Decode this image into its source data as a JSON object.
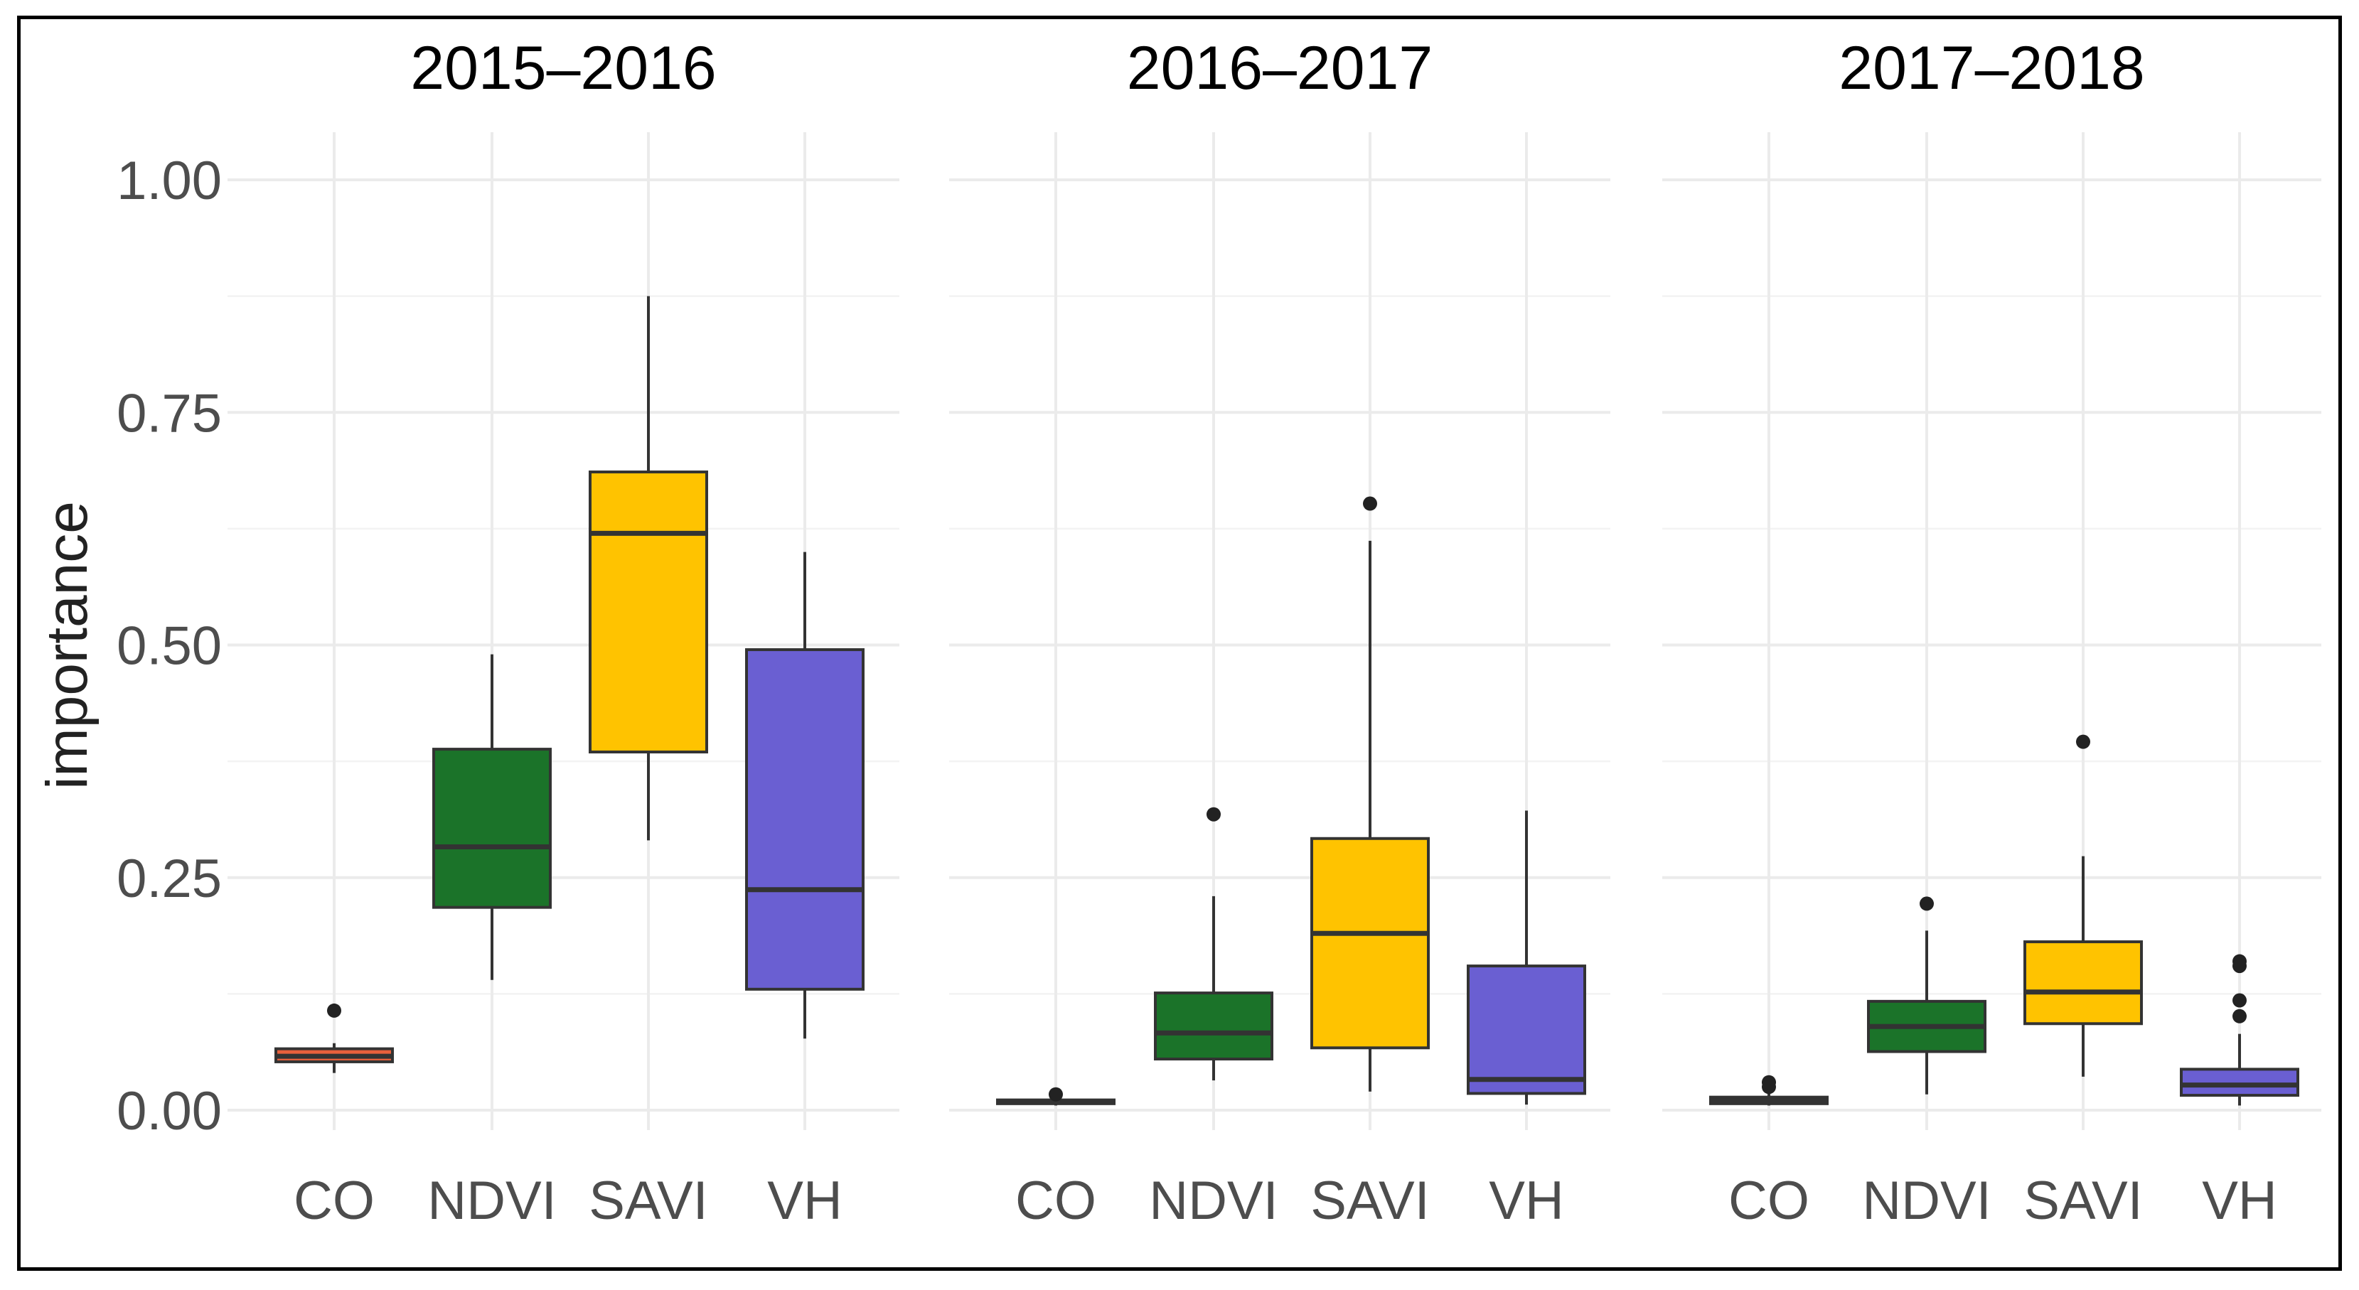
{
  "chart_data": {
    "type": "boxplot",
    "ylabel": "importance",
    "xlabel": "",
    "ylim": [
      -0.02,
      1.05
    ],
    "y_ticks": [
      {
        "value": 0.0,
        "label": "0.00"
      },
      {
        "value": 0.25,
        "label": "0.25"
      },
      {
        "value": 0.5,
        "label": "0.50"
      },
      {
        "value": 0.75,
        "label": "0.75"
      },
      {
        "value": 1.0,
        "label": "1.00"
      }
    ],
    "categories": [
      "CO",
      "NDVI",
      "SAVI",
      "VH"
    ],
    "colors": {
      "CO": "#e8603c",
      "NDVI": "#1b7329",
      "SAVI": "#ffc300",
      "VH": "#6a5fd2"
    },
    "panels": [
      {
        "title": "2015–2016",
        "boxes": [
          {
            "category": "CO",
            "min": 0.04,
            "q1": 0.052,
            "median": 0.058,
            "q3": 0.066,
            "max": 0.072,
            "outliers": [
              0.107
            ]
          },
          {
            "category": "NDVI",
            "min": 0.14,
            "q1": 0.218,
            "median": 0.283,
            "q3": 0.388,
            "max": 0.49,
            "outliers": []
          },
          {
            "category": "SAVI",
            "min": 0.29,
            "q1": 0.385,
            "median": 0.62,
            "q3": 0.686,
            "max": 0.875,
            "outliers": []
          },
          {
            "category": "VH",
            "min": 0.077,
            "q1": 0.13,
            "median": 0.237,
            "q3": 0.495,
            "max": 0.6,
            "outliers": []
          }
        ]
      },
      {
        "title": "2016–2017",
        "boxes": [
          {
            "category": "CO",
            "min": 0.005,
            "q1": 0.007,
            "median": 0.009,
            "q3": 0.011,
            "max": 0.013,
            "outliers": [
              0.017
            ]
          },
          {
            "category": "NDVI",
            "min": 0.032,
            "q1": 0.055,
            "median": 0.083,
            "q3": 0.126,
            "max": 0.23,
            "outliers": [
              0.318
            ]
          },
          {
            "category": "SAVI",
            "min": 0.02,
            "q1": 0.067,
            "median": 0.19,
            "q3": 0.292,
            "max": 0.612,
            "outliers": [
              0.652
            ]
          },
          {
            "category": "VH",
            "min": 0.006,
            "q1": 0.018,
            "median": 0.033,
            "q3": 0.155,
            "max": 0.322,
            "outliers": []
          }
        ]
      },
      {
        "title": "2017–2018",
        "boxes": [
          {
            "category": "CO",
            "min": 0.005,
            "q1": 0.007,
            "median": 0.01,
            "q3": 0.014,
            "max": 0.018,
            "outliers": [
              0.025,
              0.03
            ]
          },
          {
            "category": "NDVI",
            "min": 0.017,
            "q1": 0.063,
            "median": 0.09,
            "q3": 0.117,
            "max": 0.193,
            "outliers": [
              0.222
            ]
          },
          {
            "category": "SAVI",
            "min": 0.036,
            "q1": 0.093,
            "median": 0.127,
            "q3": 0.181,
            "max": 0.273,
            "outliers": [
              0.396
            ]
          },
          {
            "category": "VH",
            "min": 0.005,
            "q1": 0.016,
            "median": 0.027,
            "q3": 0.044,
            "max": 0.082,
            "outliers": [
              0.101,
              0.118,
              0.155,
              0.16
            ]
          }
        ]
      }
    ]
  }
}
